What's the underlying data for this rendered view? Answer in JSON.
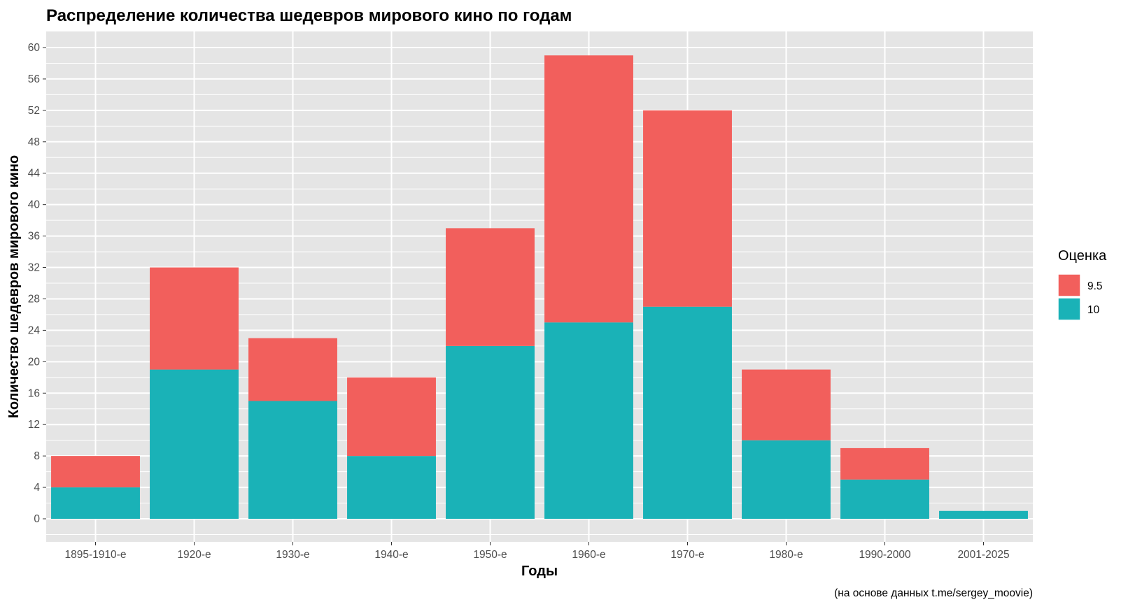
{
  "chart_data": {
    "type": "bar",
    "stacked": true,
    "title": "Распределение количества шедевров мирового кино по годам",
    "xlabel": "Годы",
    "ylabel": "Количество шедевров мирового кино",
    "caption": "(на основе данных t.me/sergey_moovie)",
    "categories": [
      "1895-1910-е",
      "1920-е",
      "1930-е",
      "1940-е",
      "1950-е",
      "1960-е",
      "1970-е",
      "1980-е",
      "1990-2000",
      "2001-2025"
    ],
    "series": [
      {
        "name": "10",
        "color": "#1AB2B7",
        "values": [
          4,
          19,
          15,
          8,
          22,
          25,
          27,
          10,
          5,
          1
        ]
      },
      {
        "name": "9.5",
        "color": "#F25F5C",
        "values": [
          4,
          13,
          8,
          10,
          15,
          34,
          25,
          9,
          4,
          0
        ]
      }
    ],
    "legend": {
      "title": "Оценка",
      "position": "right",
      "entries": [
        {
          "label": "9.5",
          "color": "#F25F5C"
        },
        {
          "label": "10",
          "color": "#1AB2B7"
        }
      ]
    },
    "ylim": [
      0,
      60
    ],
    "yticks": [
      0,
      4,
      8,
      12,
      16,
      20,
      24,
      28,
      32,
      36,
      40,
      44,
      48,
      52,
      56,
      60
    ],
    "grid": true,
    "panel_background": "#E5E5E5",
    "grid_color": "#FFFFFF"
  }
}
